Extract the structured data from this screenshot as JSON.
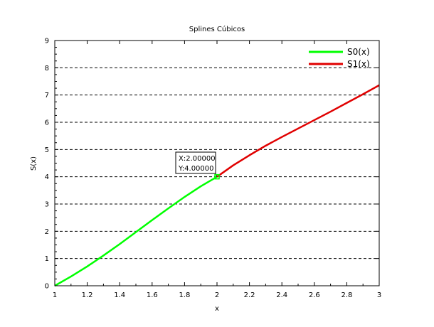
{
  "chart_data": {
    "type": "line",
    "title": "Splines Cúbicos",
    "xlabel": "x",
    "ylabel": "S(x)",
    "xlim": [
      1,
      3
    ],
    "ylim": [
      0,
      9
    ],
    "xticks": [
      "1",
      "1.2",
      "1.4",
      "1.6",
      "1.8",
      "2",
      "2.2",
      "2.4",
      "2.6",
      "2.8",
      "3"
    ],
    "yticks": [
      "0",
      "1",
      "2",
      "3",
      "4",
      "5",
      "6",
      "7",
      "8",
      "9"
    ],
    "grid": "horizontal dashed",
    "legend_position": "top-right",
    "series": [
      {
        "name": "S0(x)",
        "color": "#00ff00",
        "x": [
          1.0,
          1.1,
          1.2,
          1.3,
          1.4,
          1.5,
          1.6,
          1.7,
          1.8,
          1.9,
          2.0
        ],
        "y": [
          0.0,
          0.34,
          0.71,
          1.11,
          1.53,
          1.97,
          2.41,
          2.84,
          3.26,
          3.65,
          4.0
        ]
      },
      {
        "name": "S1(x)",
        "color": "#e00000",
        "x": [
          2.0,
          2.1,
          2.2,
          2.3,
          2.4,
          2.5,
          2.6,
          2.7,
          2.8,
          2.9,
          3.0
        ],
        "y": [
          4.0,
          4.42,
          4.79,
          5.14,
          5.46,
          5.77,
          6.08,
          6.39,
          6.71,
          7.03,
          7.36
        ]
      }
    ],
    "datatip": {
      "x": 2.0,
      "y": 4.0,
      "line1": "X:2.00000",
      "line2": "Y:4.00000"
    }
  }
}
